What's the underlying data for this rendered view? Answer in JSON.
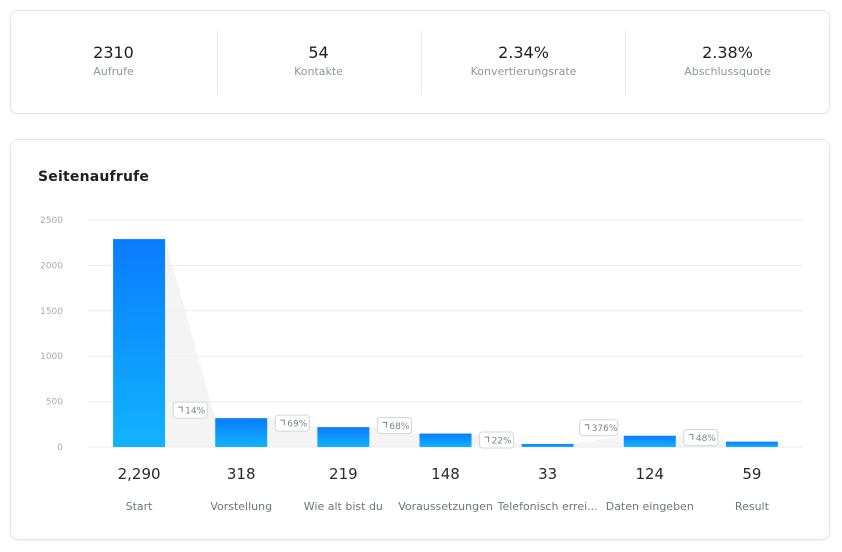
{
  "stats": [
    {
      "value": "2310",
      "label": "Aufrufe"
    },
    {
      "value": "54",
      "label": "Kontakte"
    },
    {
      "value": "2.34%",
      "label": "Konvertierungsrate"
    },
    {
      "value": "2.38%",
      "label": "Abschlussquote"
    }
  ],
  "chart": {
    "title": "Seitenaufrufe"
  },
  "chart_data": {
    "type": "bar",
    "title": "Seitenaufrufe",
    "categories": [
      "Start",
      "Vorstellung",
      "Wie alt bist du",
      "Voraussetzungen",
      "Telefonisch errei...",
      "Daten eingeben",
      "Result"
    ],
    "values": [
      2290,
      318,
      219,
      148,
      33,
      124,
      59
    ],
    "value_labels": [
      "2,290",
      "318",
      "219",
      "148",
      "33",
      "124",
      "59"
    ],
    "step_rates": [
      "14%",
      "69%",
      "68%",
      "22%",
      "376%",
      "48%"
    ],
    "yticks": [
      0,
      500,
      1000,
      1500,
      2000,
      2500
    ],
    "ylim": [
      0,
      2500
    ],
    "grid": true,
    "colors": {
      "bar_top": "#0a7cff",
      "bar_bottom": "#12b3ff",
      "funnel_fill": "#efefef"
    }
  },
  "icons": {
    "rate_badge_icon": "turn-arrow-icon"
  }
}
